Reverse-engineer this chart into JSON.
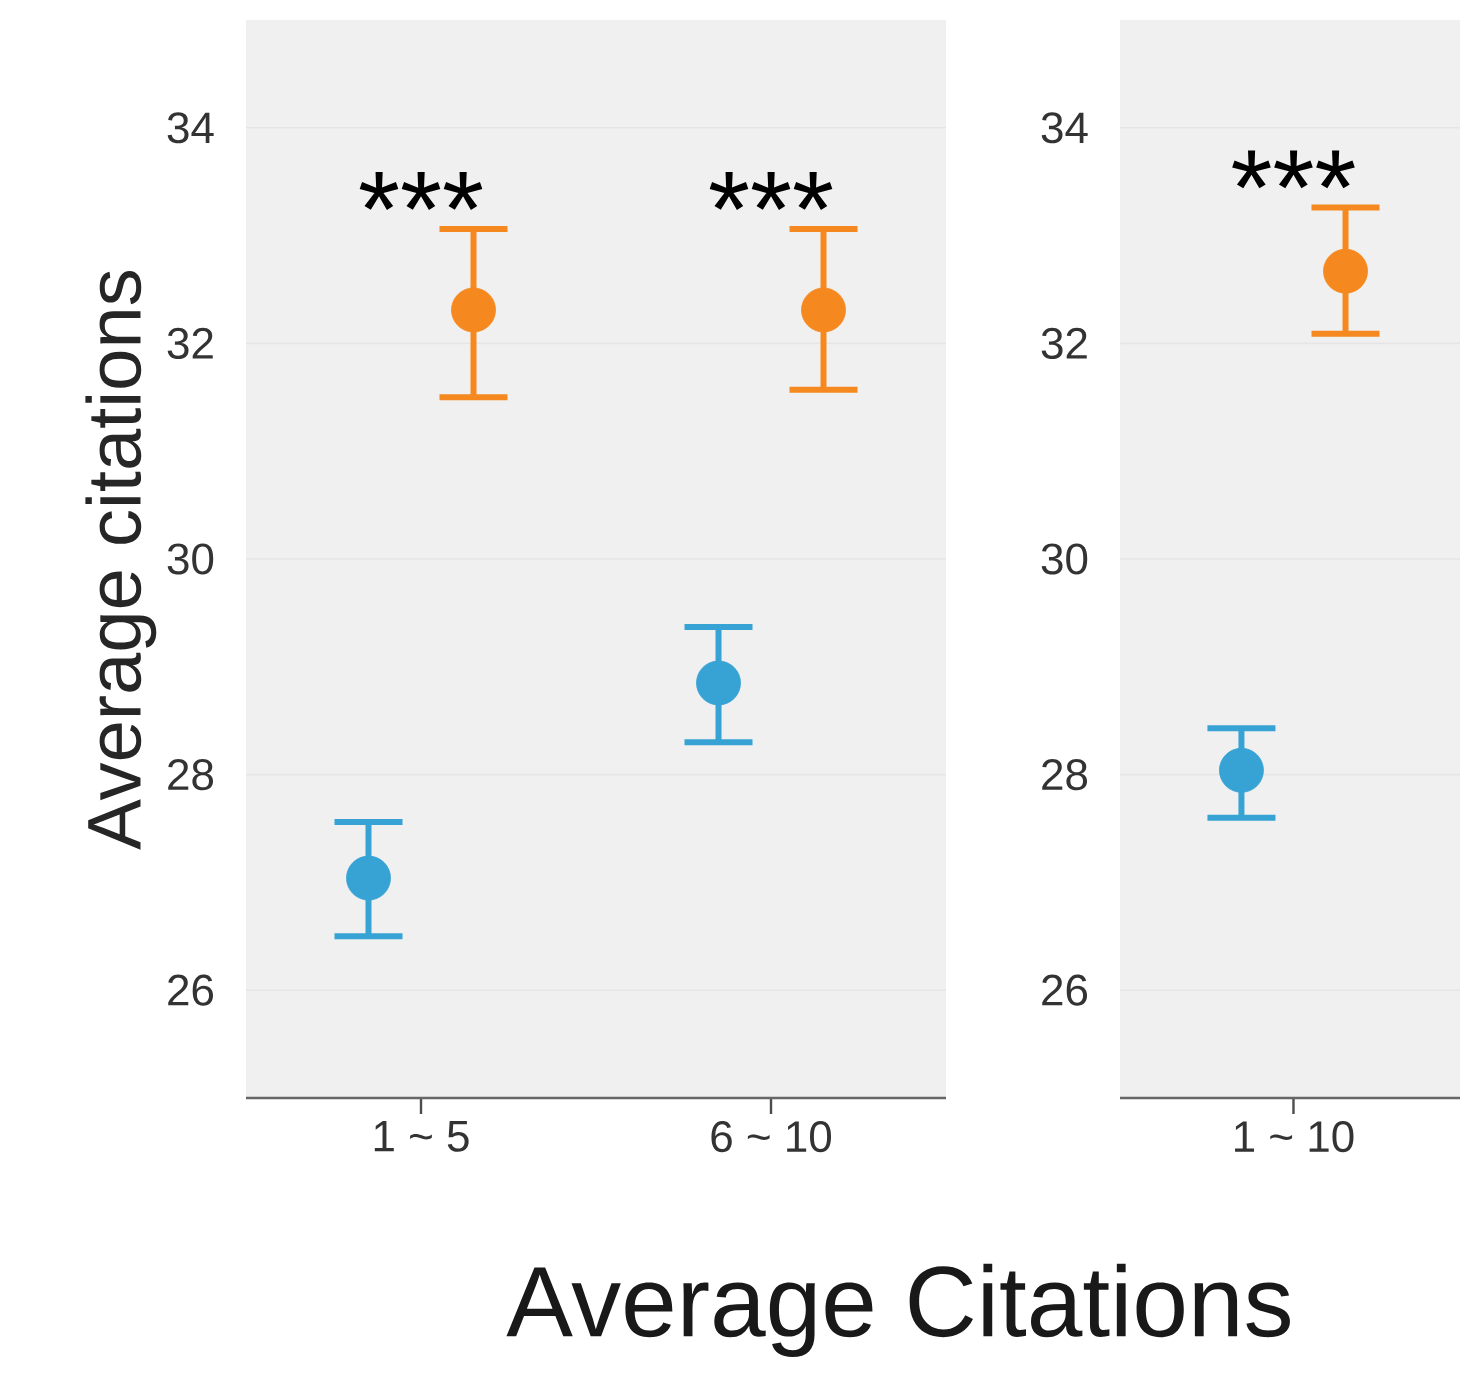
{
  "chart_data": [
    {
      "type": "scatter",
      "ylabel": "Average citations",
      "xlabel": "Average Citations",
      "categories": [
        "1 ~ 5",
        "6 ~ 10"
      ],
      "series": [
        {
          "color": "#36a3d4",
          "values": [
            27.04,
            28.85
          ],
          "errors": [
            [
              26.5,
              27.56
            ],
            [
              28.3,
              29.37
            ]
          ]
        },
        {
          "color": "#f5891f",
          "values": [
            32.31,
            32.31
          ],
          "errors": [
            [
              31.5,
              33.06
            ],
            [
              31.57,
              33.06
            ]
          ]
        }
      ],
      "annotations": [
        "***",
        "***"
      ],
      "ylim": [
        25,
        35
      ],
      "yticks": [
        26,
        28,
        30,
        32,
        34
      ],
      "grid": "y"
    },
    {
      "type": "scatter",
      "categories": [
        "1 ~ 10"
      ],
      "series": [
        {
          "color": "#36a3d4",
          "values": [
            28.04
          ],
          "errors": [
            [
              27.6,
              28.43
            ]
          ]
        },
        {
          "color": "#f5891f",
          "values": [
            32.67
          ],
          "errors": [
            [
              32.09,
              33.26
            ]
          ]
        }
      ],
      "annotations": [
        "***"
      ],
      "ylim": [
        25,
        35
      ],
      "yticks": [
        26,
        28,
        30,
        32,
        34
      ],
      "grid": "y"
    }
  ]
}
